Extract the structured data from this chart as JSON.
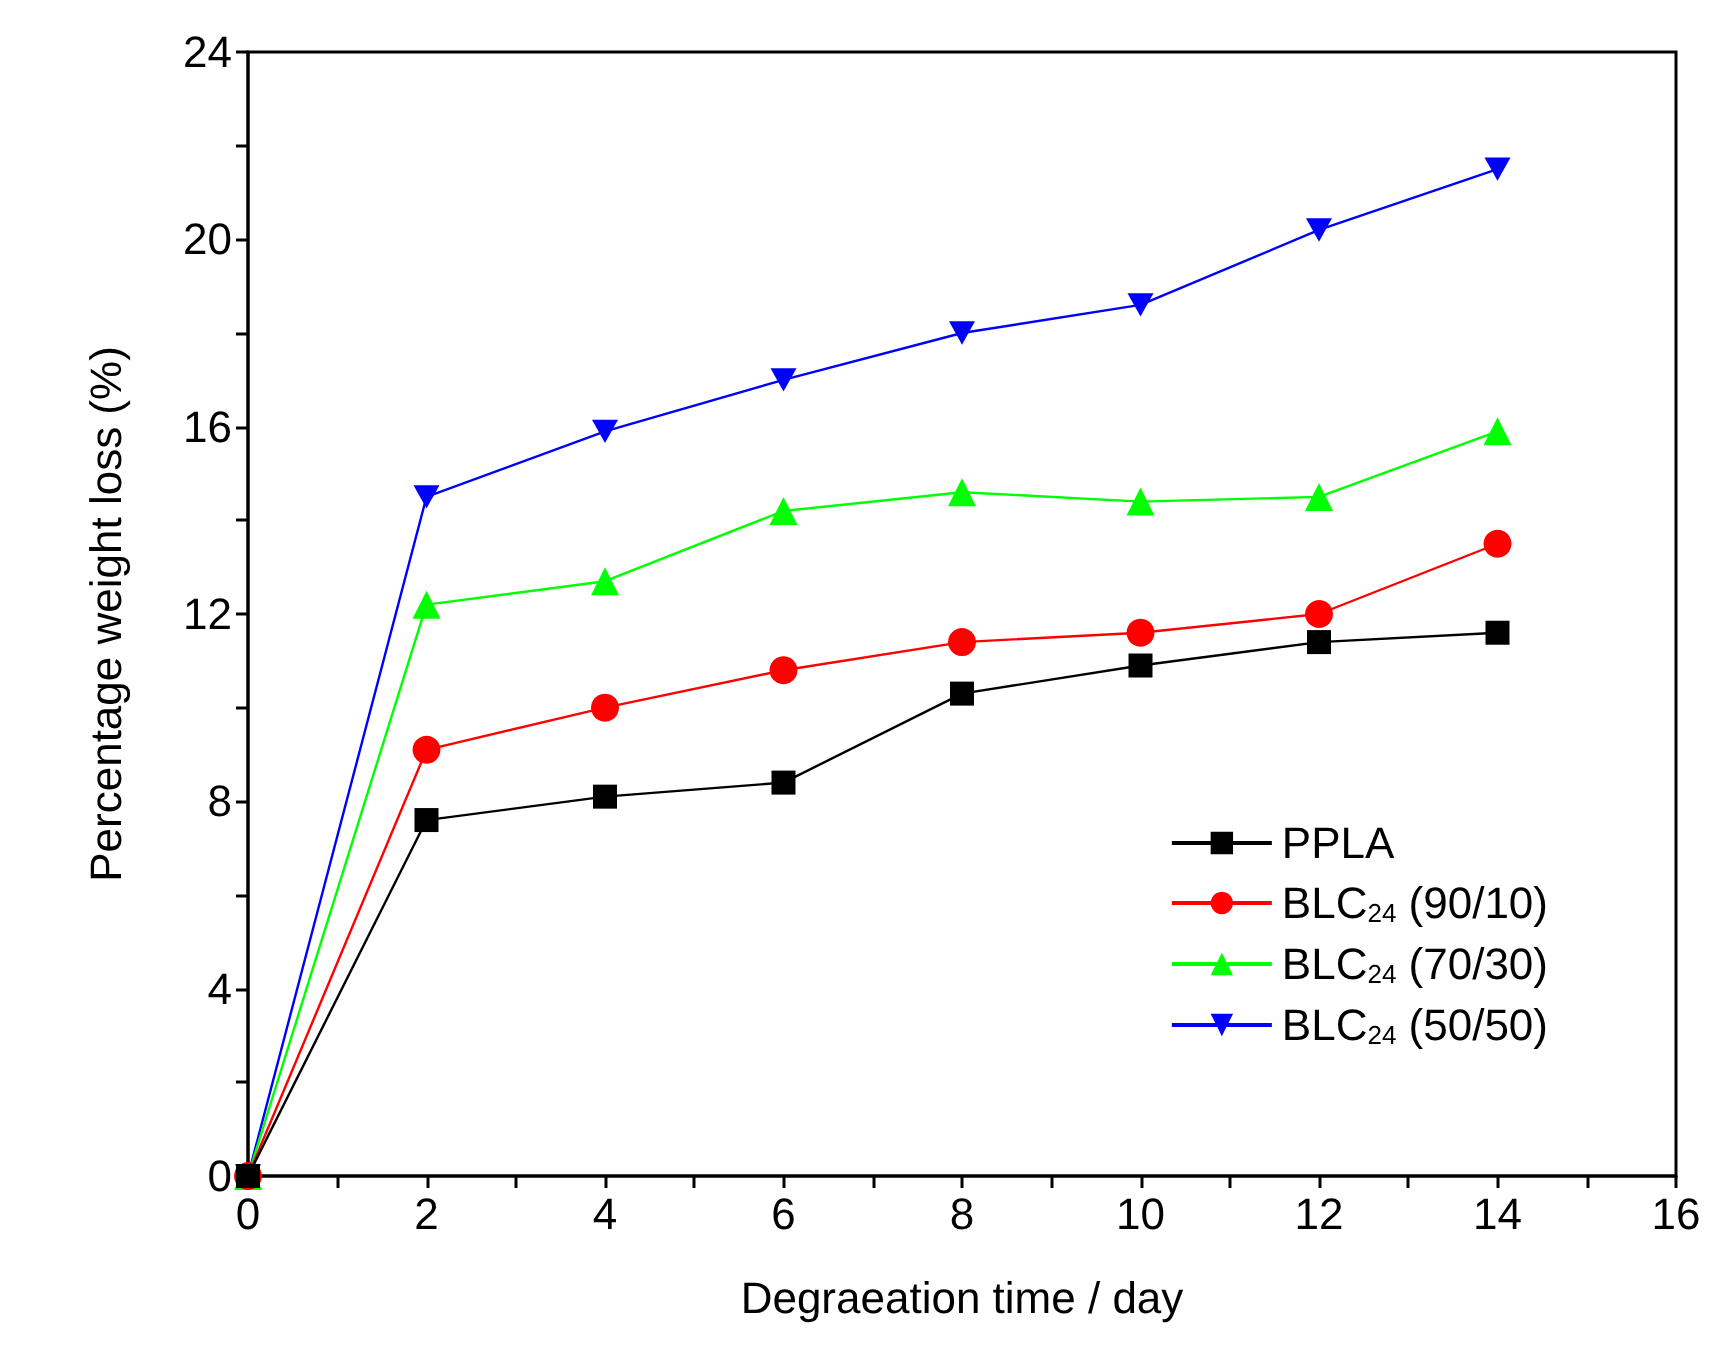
{
  "chart_data": {
    "type": "line",
    "xlabel": "Degraeation time / day",
    "ylabel": "Percentage weight loss (%)",
    "x": [
      0,
      2,
      4,
      6,
      8,
      10,
      12,
      14
    ],
    "xlim": [
      0,
      16
    ],
    "xticks": [
      0,
      2,
      4,
      6,
      8,
      10,
      12,
      14,
      16
    ],
    "ylim": [
      0,
      24
    ],
    "yticks": [
      0,
      4,
      8,
      12,
      16,
      20,
      24
    ],
    "grid": false,
    "legend": "bottom right",
    "line_style": "solid",
    "series": [
      {
        "name": "PPLA",
        "color": "#000000",
        "marker": "square",
        "values": [
          0,
          7.6,
          8.1,
          8.4,
          10.3,
          10.9,
          11.4,
          11.6
        ]
      },
      {
        "name": "BLC$_{24}$ (90/10)",
        "color": "#ff0000",
        "marker": "circle",
        "values": [
          0,
          9.1,
          10.0,
          10.8,
          11.4,
          11.6,
          12.0,
          13.5
        ]
      },
      {
        "name": "BLC$_{24}$ (70/30)",
        "color": "#00ff00",
        "marker": "triangle",
        "values": [
          0,
          12.2,
          12.7,
          14.2,
          14.6,
          14.4,
          14.5,
          15.9
        ]
      },
      {
        "name": "BLC$_{24}$ (50/50)",
        "color": "#0000ff",
        "marker": "triangle-down",
        "values": [
          0,
          14.5,
          15.9,
          17.0,
          18.0,
          18.6,
          20.2,
          21.5
        ]
      }
    ]
  }
}
